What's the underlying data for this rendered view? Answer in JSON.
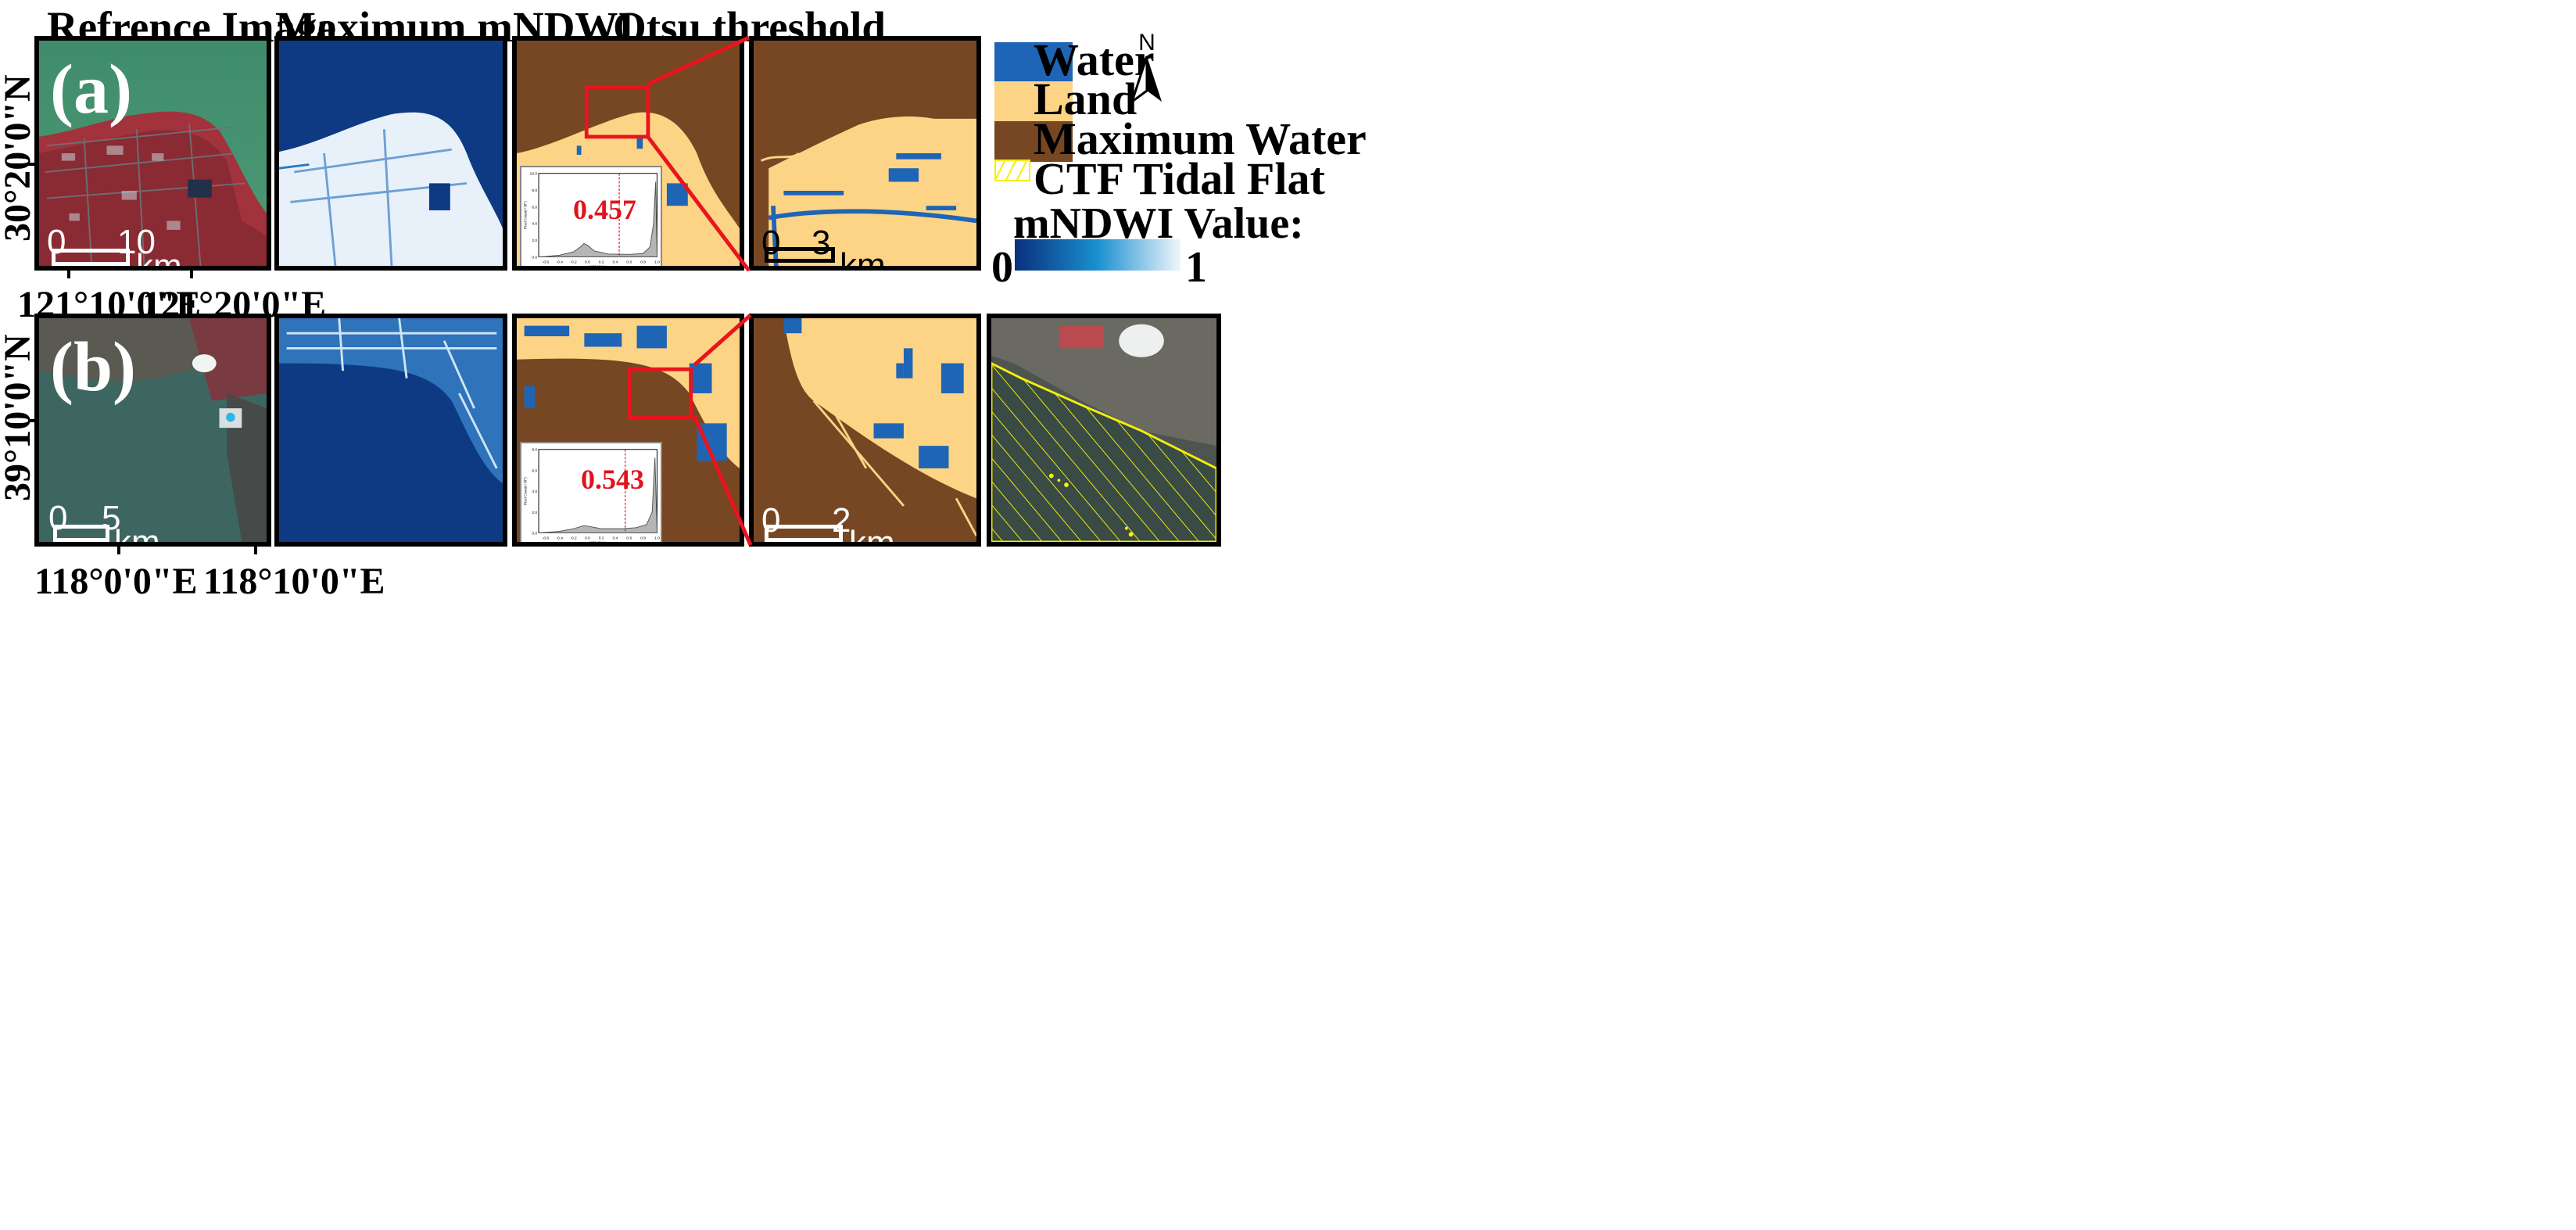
{
  "columns": {
    "reference": "Refrence Image",
    "mndwi": "Maximum mNDWI",
    "otsu": "Otsu threshold"
  },
  "rows": [
    {
      "label": "(a)",
      "lat_label": "30°20'0\"N",
      "lon_labels": [
        "121°10'0\"E",
        "121°20'0\"E"
      ],
      "ref_scale": {
        "start": "0",
        "end": "10",
        "unit": "km"
      },
      "zoom_scale": {
        "start": "0",
        "end": "3",
        "unit": "km"
      },
      "histogram": {
        "threshold": "0.457",
        "threshold_value": 0.457,
        "ymax": 10
      }
    },
    {
      "label": "(b)",
      "lat_label": "39°10'0\"N",
      "lon_labels": [
        "118°0'0\"E",
        "118°10'0\"E"
      ],
      "ref_scale": {
        "start": "0",
        "end": "5",
        "unit": "km"
      },
      "zoom_scale": {
        "start": "0",
        "end": "2",
        "unit": "km"
      },
      "histogram": {
        "threshold": "0.543",
        "threshold_value": 0.543,
        "ymax": 8
      }
    }
  ],
  "histogram_axes": {
    "xlabel": "mNDWI Value",
    "ylabel": "Pixel Count(×10⁵)",
    "xticks": [
      "-0.6",
      "-0.4",
      "-0.2",
      "0.0",
      "0.2",
      "0.4",
      "0.6",
      "0.8",
      "1.0"
    ]
  },
  "legend": {
    "items": [
      {
        "label": "Water",
        "color": "#1f65b5"
      },
      {
        "label": "Land",
        "color": "#fdd485"
      },
      {
        "label": "Maximum Water",
        "color": "#764722"
      },
      {
        "label": "CTF Tidal Flat",
        "color": "#f3f00b"
      }
    ],
    "north": "N",
    "colorbar_title": "mNDWI Value:",
    "colorbar_min": "0",
    "colorbar_max": "1",
    "colorbar_colors": [
      "#0a2f7d",
      "#1a90d0",
      "#f0f6fb"
    ]
  },
  "colors": {
    "zoom_box": "#e8141e",
    "water": "#1f65b5",
    "land": "#fdd485",
    "max_water": "#764722"
  }
}
